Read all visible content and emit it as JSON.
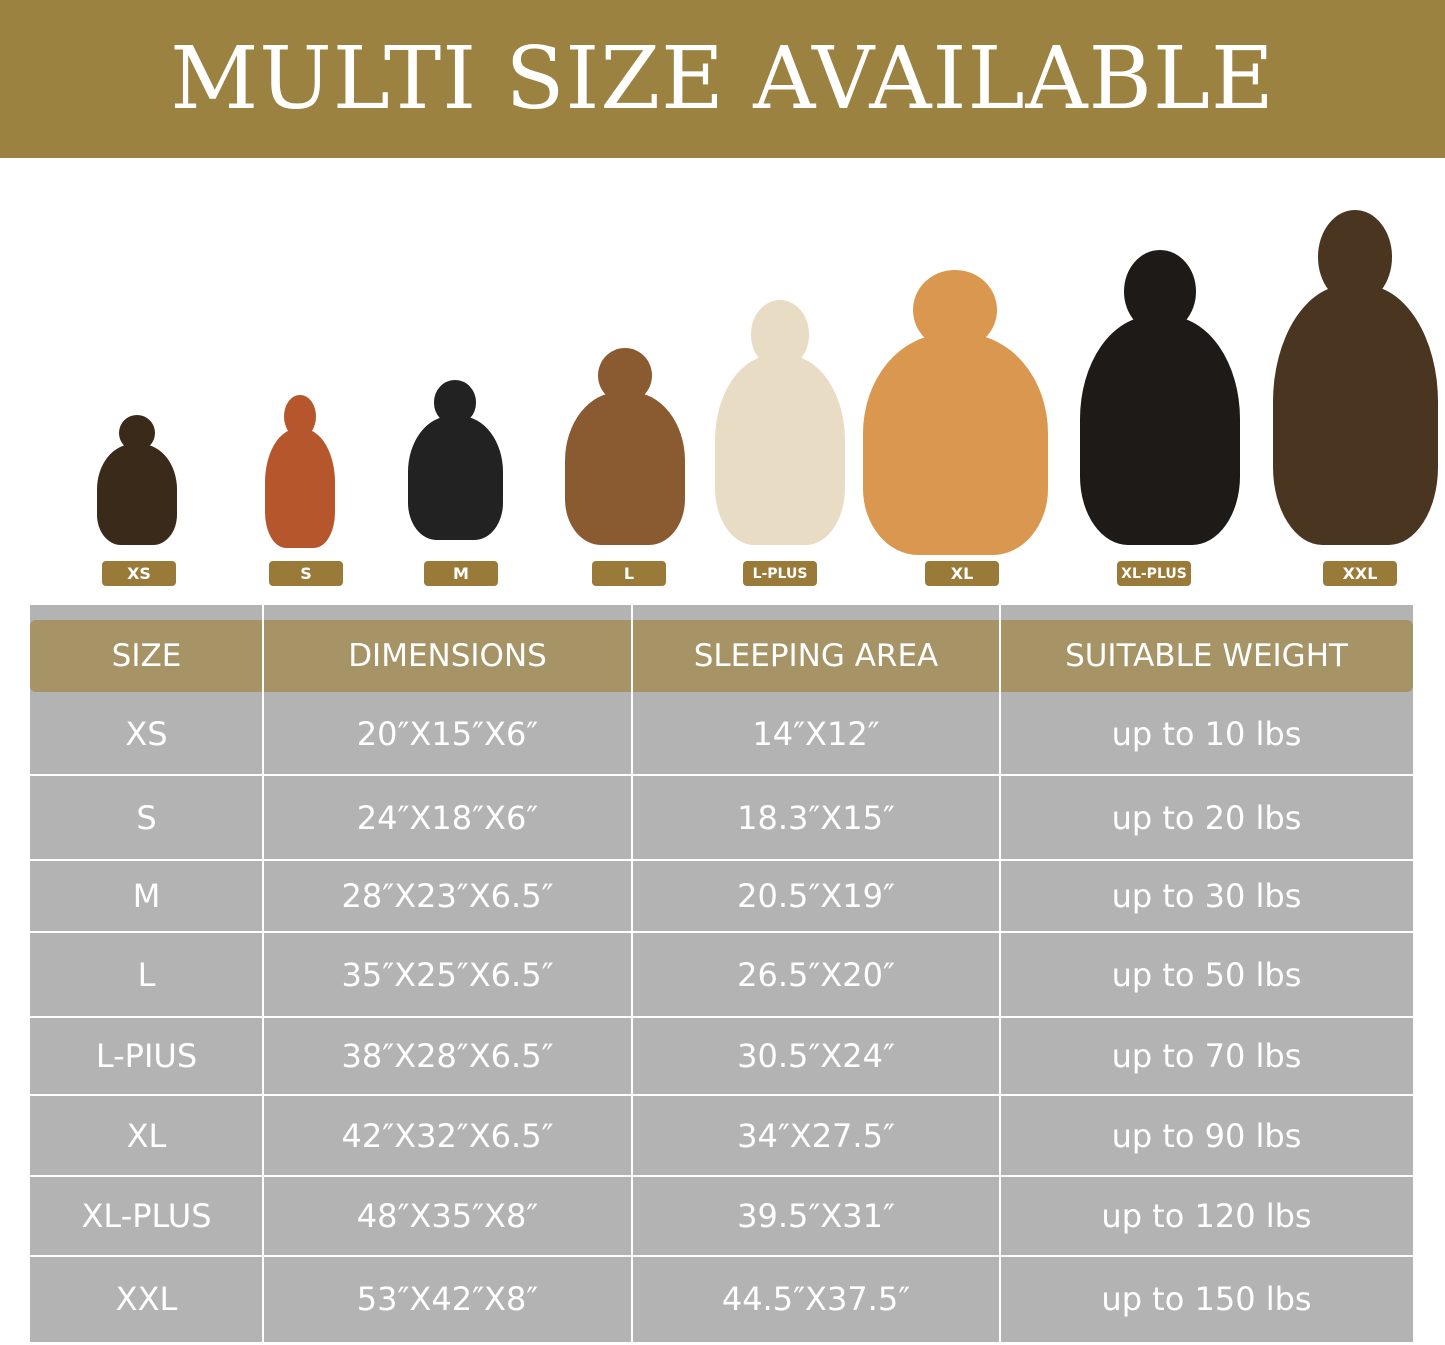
{
  "banner": {
    "title": "MULTI SIZE AVAILABLE",
    "color": "#9c8240"
  },
  "dogs": [
    {
      "size": "XS",
      "color": "#3a2a1a"
    },
    {
      "size": "S",
      "color": "#b5562d"
    },
    {
      "size": "M",
      "color": "#222222"
    },
    {
      "size": "L",
      "color": "#8a5a30"
    },
    {
      "size": "L-PLUS",
      "color": "#e8dcc4"
    },
    {
      "size": "XL",
      "color": "#d9974f"
    },
    {
      "size": "XL-PLUS",
      "color": "#1e1a18"
    },
    {
      "size": "XXL",
      "color": "#4a3520"
    }
  ],
  "table": {
    "headers": [
      "SIZE",
      "DIMENSIONS",
      "SLEEPING AREA",
      "SUITABLE WEIGHT"
    ],
    "rows": [
      [
        "XS",
        "20″X15″X6″",
        "14″X12″",
        "up to 10 lbs"
      ],
      [
        "S",
        "24″X18″X6″",
        "18.3″X15″",
        "up to 20 lbs"
      ],
      [
        "M",
        "28″X23″X6.5″",
        "20.5″X19″",
        "up to 30 lbs"
      ],
      [
        "L",
        "35″X25″X6.5″",
        "26.5″X20″",
        "up to 50 lbs"
      ],
      [
        "L-PIUS",
        "38″X28″X6.5″",
        "30.5″X24″",
        "up to 70 lbs"
      ],
      [
        "XL",
        "42″X32″X6.5″",
        "34″X27.5″",
        "up to 90 lbs"
      ],
      [
        "XL-PLUS",
        "48″X35″X8″",
        "39.5″X31″",
        "up to 120 lbs"
      ],
      [
        "XXL",
        "53″X42″X8″",
        "44.5″X37.5″",
        "up to 150 lbs"
      ]
    ]
  }
}
